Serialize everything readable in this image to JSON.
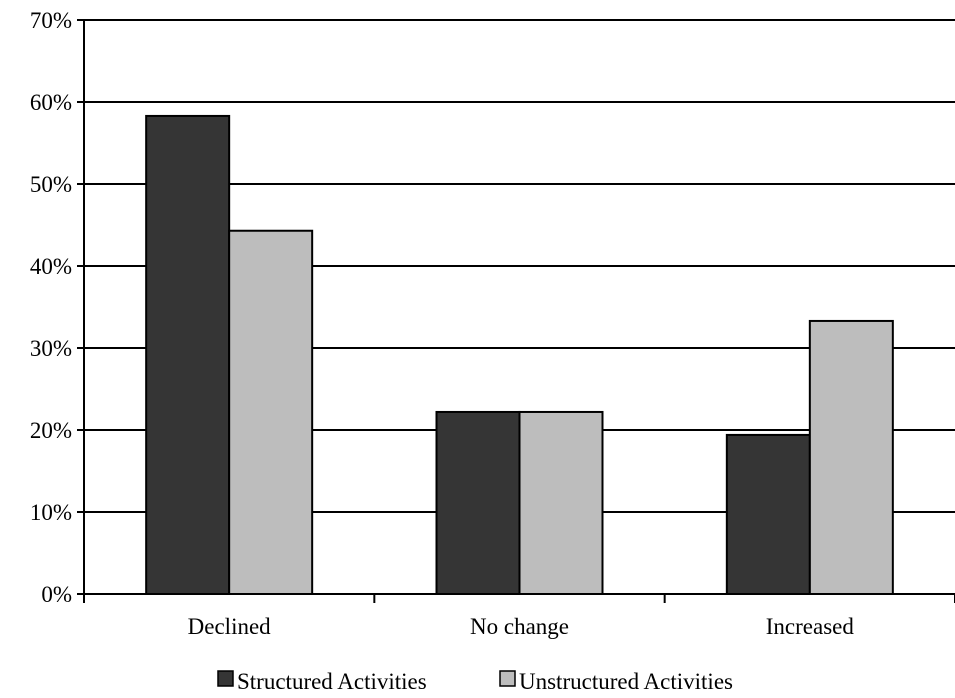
{
  "chart_data": {
    "type": "bar",
    "title": "",
    "xlabel": "",
    "ylabel": "",
    "categories": [
      "Declined",
      "No change",
      "Increased"
    ],
    "series": [
      {
        "name": "Structured Activities",
        "values": [
          58.3,
          22.2,
          19.4
        ],
        "color": "#353535"
      },
      {
        "name": "Unstructured Activities",
        "values": [
          44.3,
          22.2,
          33.3
        ],
        "color": "#bdbdbd"
      }
    ],
    "ylim": [
      0,
      70
    ],
    "yticks": [
      0,
      10,
      20,
      30,
      40,
      50,
      60,
      70
    ],
    "ytick_labels": [
      "0%",
      "10%",
      "20%",
      "30%",
      "40%",
      "50%",
      "60%",
      "70%"
    ],
    "grid": true,
    "legend_position": "bottom"
  }
}
